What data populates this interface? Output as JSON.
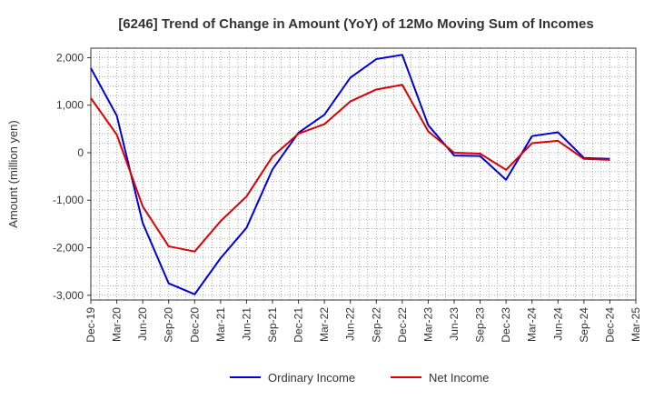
{
  "chart_data": {
    "type": "line",
    "title": "[6246]  Trend of Change in Amount (YoY) of 12Mo Moving Sum of Incomes",
    "ylabel": "Amount (million yen)",
    "xlabel": "",
    "ylim": [
      -3100,
      2200
    ],
    "yticks": [
      -3000,
      -2000,
      -1000,
      0,
      1000,
      2000
    ],
    "ytick_labels": [
      "-3,000",
      "-2,000",
      "-1,000",
      "0",
      "1,000",
      "2,000"
    ],
    "categories": [
      "Dec-19",
      "Mar-20",
      "Jun-20",
      "Sep-20",
      "Dec-20",
      "Mar-21",
      "Jun-21",
      "Sep-21",
      "Dec-21",
      "Mar-22",
      "Jun-22",
      "Sep-22",
      "Dec-22",
      "Mar-23",
      "Jun-23",
      "Sep-23",
      "Dec-23",
      "Mar-24",
      "Jun-24",
      "Sep-24",
      "Dec-24",
      "Mar-25"
    ],
    "grid": true,
    "legend_position": "bottom",
    "series": [
      {
        "name": "Ordinary Income",
        "color": "#0000dd",
        "values": [
          1780,
          780,
          -1480,
          -2750,
          -2980,
          -2220,
          -1580,
          -350,
          420,
          800,
          1580,
          1970,
          2060,
          580,
          -60,
          -70,
          -570,
          350,
          430,
          -110,
          -130,
          null
        ]
      },
      {
        "name": "Net Income",
        "color": "#dd0000",
        "values": [
          1150,
          380,
          -1130,
          -1970,
          -2080,
          -1440,
          -920,
          -80,
          400,
          600,
          1080,
          1330,
          1430,
          450,
          0,
          -20,
          -360,
          200,
          250,
          -130,
          -150,
          null
        ]
      }
    ]
  }
}
